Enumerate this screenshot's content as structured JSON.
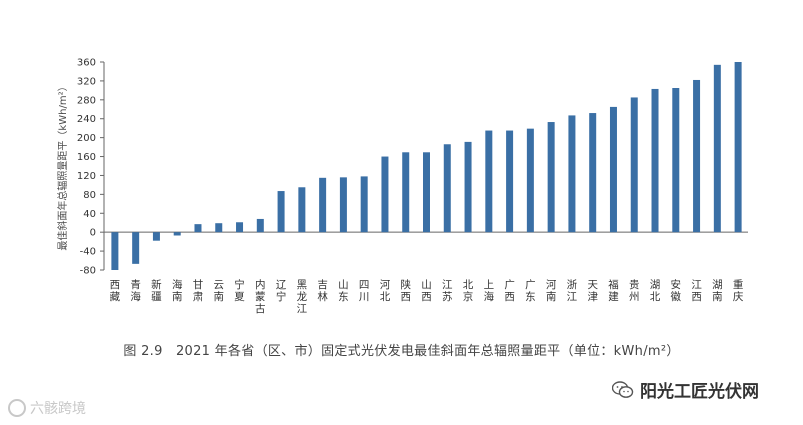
{
  "chart_data": {
    "type": "bar",
    "ylabel": "最佳斜面年总辐照量距平（kWh/m²）",
    "ylim": [
      -80,
      360
    ],
    "yticks": [
      -80,
      -40,
      0,
      40,
      80,
      120,
      160,
      200,
      240,
      280,
      320,
      360
    ],
    "bar_color": "#3a6fa5",
    "categories": [
      "西藏",
      "青海",
      "新疆",
      "海南",
      "甘肃",
      "云南",
      "宁夏",
      "内蒙古",
      "辽宁",
      "黑龙江",
      "吉林",
      "山东",
      "四川",
      "河北",
      "陕西",
      "山西",
      "江苏",
      "北京",
      "上海",
      "广西",
      "广东",
      "河南",
      "浙江",
      "天津",
      "福建",
      "贵州",
      "湖北",
      "安徽",
      "江西",
      "湖南",
      "重庆"
    ],
    "values": [
      -80,
      -67,
      -18,
      -7,
      17,
      19,
      21,
      28,
      87,
      95,
      115,
      116,
      118,
      160,
      169,
      169,
      186,
      191,
      215,
      215,
      219,
      233,
      247,
      252,
      265,
      285,
      303,
      305,
      322,
      354,
      360
    ]
  },
  "caption": "图 2.9　2021 年各省（区、市）固定式光伏发电最佳斜面年总辐照量距平（单位：kWh/m²）",
  "watermark_left": "六骸跨境",
  "watermark_right": "阳光工匠光伏网"
}
